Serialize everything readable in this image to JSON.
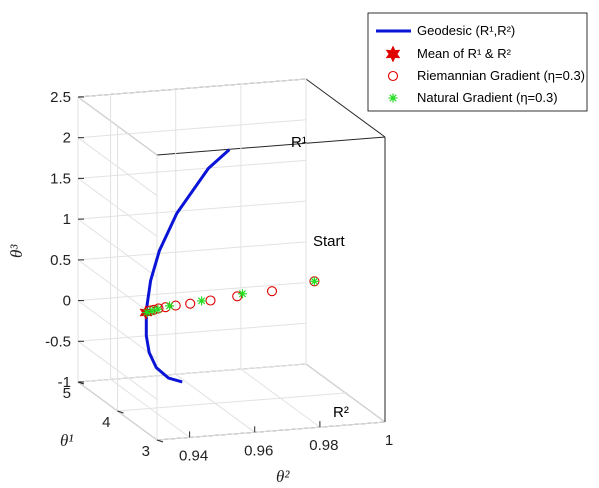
{
  "chart_data": {
    "type": "line",
    "title": "",
    "axes": {
      "x_label": "θ²",
      "y_label": "θ¹",
      "z_label": "θ³",
      "x_ticks": [
        "0.94",
        "0.96",
        "0.98",
        "1"
      ],
      "y_ticks": [
        "3",
        "4",
        "5"
      ],
      "z_ticks": [
        "-1",
        "-0.5",
        "0",
        "0.5",
        "1",
        "1.5",
        "2",
        "2.5"
      ],
      "x_range": [
        0.93,
        1.0
      ],
      "y_range": [
        3,
        5
      ],
      "z_range": [
        -1,
        2.5
      ],
      "grid": "on",
      "projection": "3d"
    },
    "legend": {
      "placement": "top-right",
      "entries": [
        {
          "key": "geodesic",
          "label": "Geodesic (R¹,R²)",
          "color": "#0a14d6",
          "marker": "line"
        },
        {
          "key": "mean",
          "label": "Mean of R¹ & R²",
          "color": "#e00000",
          "marker": "hexagram"
        },
        {
          "key": "riemannian",
          "label": "Riemannian Gradient (η=0.3)",
          "color": "#e00000",
          "marker": "circle"
        },
        {
          "key": "natural",
          "label": "Natural Gradient  (η=0.3)",
          "color": "#22dd22",
          "marker": "asterisk"
        }
      ]
    },
    "annotations": {
      "r1": "R¹",
      "r2": "R²",
      "start": "Start"
    },
    "series": [
      {
        "name": "Geodesic (R¹,R²)",
        "key": "geodesic",
        "x": [
          0.9613,
          0.9561,
          0.9488,
          0.9453,
          0.9438,
          0.9437,
          0.9449,
          0.947,
          0.951,
          0.9566,
          0.962
        ],
        "y": [
          3.75,
          3.85,
          4.05,
          4.2,
          4.3,
          4.4,
          4.5,
          4.6,
          4.75,
          4.9,
          5.0
        ],
        "z": [
          2.2,
          1.95,
          1.35,
          0.85,
          0.45,
          0.05,
          -0.3,
          -0.55,
          -0.8,
          -1.0,
          -1.1
        ]
      },
      {
        "name": "Mean of R¹ & R²",
        "key": "mean",
        "x": [
          0.9437
        ],
        "y": [
          4.41
        ],
        "z": [
          0.02
        ]
      },
      {
        "name": "Riemannian Gradient (η=0.3)",
        "key": "riemannian",
        "x": [
          0.945,
          0.946,
          0.9472,
          0.949,
          0.9515,
          0.955,
          0.96,
          0.9665,
          0.975,
          0.985
        ],
        "y": [
          4.41,
          4.4,
          4.38,
          4.35,
          4.3,
          4.22,
          4.12,
          3.98,
          3.8,
          3.55
        ],
        "z": [
          0.04,
          0.05,
          0.07,
          0.09,
          0.12,
          0.16,
          0.22,
          0.3,
          0.4,
          0.58
        ]
      },
      {
        "name": "Natural Gradient  (η=0.3)",
        "key": "natural",
        "x": [
          0.944,
          0.9455,
          0.947,
          0.95,
          0.958,
          0.968,
          0.985
        ],
        "y": [
          4.41,
          4.4,
          4.38,
          4.33,
          4.18,
          3.97,
          3.55
        ],
        "z": [
          0.02,
          0.04,
          0.06,
          0.11,
          0.2,
          0.33,
          0.58
        ]
      }
    ]
  }
}
